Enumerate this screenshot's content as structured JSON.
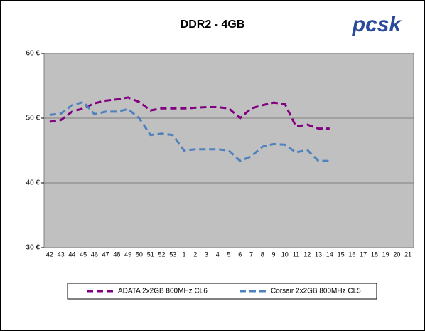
{
  "chart_data": {
    "type": "line",
    "title": "DDR2 - 4GB",
    "logo": "pcsk",
    "categories": [
      "42",
      "43",
      "44",
      "45",
      "46",
      "47",
      "48",
      "49",
      "50",
      "51",
      "52",
      "53",
      "1",
      "2",
      "3",
      "4",
      "5",
      "6",
      "7",
      "8",
      "9",
      "10",
      "11",
      "12",
      "13",
      "14",
      "15",
      "16",
      "17",
      "18",
      "19",
      "20",
      "21"
    ],
    "series": [
      {
        "name": "ADATA 2x2GB 800MHz CL6",
        "color": "#800080",
        "values": [
          49.45,
          49.7,
          51,
          51.5,
          52.3,
          52.7,
          52.9,
          53.2,
          52.5,
          51.2,
          51.5,
          51.5,
          51.5,
          51.6,
          51.7,
          51.7,
          51.5,
          50,
          51.5,
          52,
          52.4,
          52.2,
          48.7,
          49,
          48.4,
          48.4,
          null,
          null,
          null,
          null,
          null,
          null,
          null
        ]
      },
      {
        "name": "Corsair 2x2GB 800MHz CL5",
        "color": "#4f81bd",
        "values": [
          50.5,
          50.7,
          52,
          52.5,
          50.6,
          51,
          51,
          51.4,
          50,
          47.4,
          47.6,
          47.4,
          45,
          45.2,
          45.2,
          45.2,
          45,
          43.4,
          44.1,
          45.6,
          46,
          45.9,
          44.7,
          45.1,
          43.4,
          43.4,
          null,
          null,
          null,
          null,
          null,
          null,
          null
        ]
      }
    ],
    "ylim": [
      30,
      60
    ],
    "yticks": [
      {
        "value": 30,
        "label": "30 €"
      },
      {
        "value": 40,
        "label": "40 €"
      },
      {
        "value": 50,
        "label": "50 €"
      },
      {
        "value": 60,
        "label": "60 €"
      }
    ],
    "grid": true,
    "legend": "bottom"
  }
}
